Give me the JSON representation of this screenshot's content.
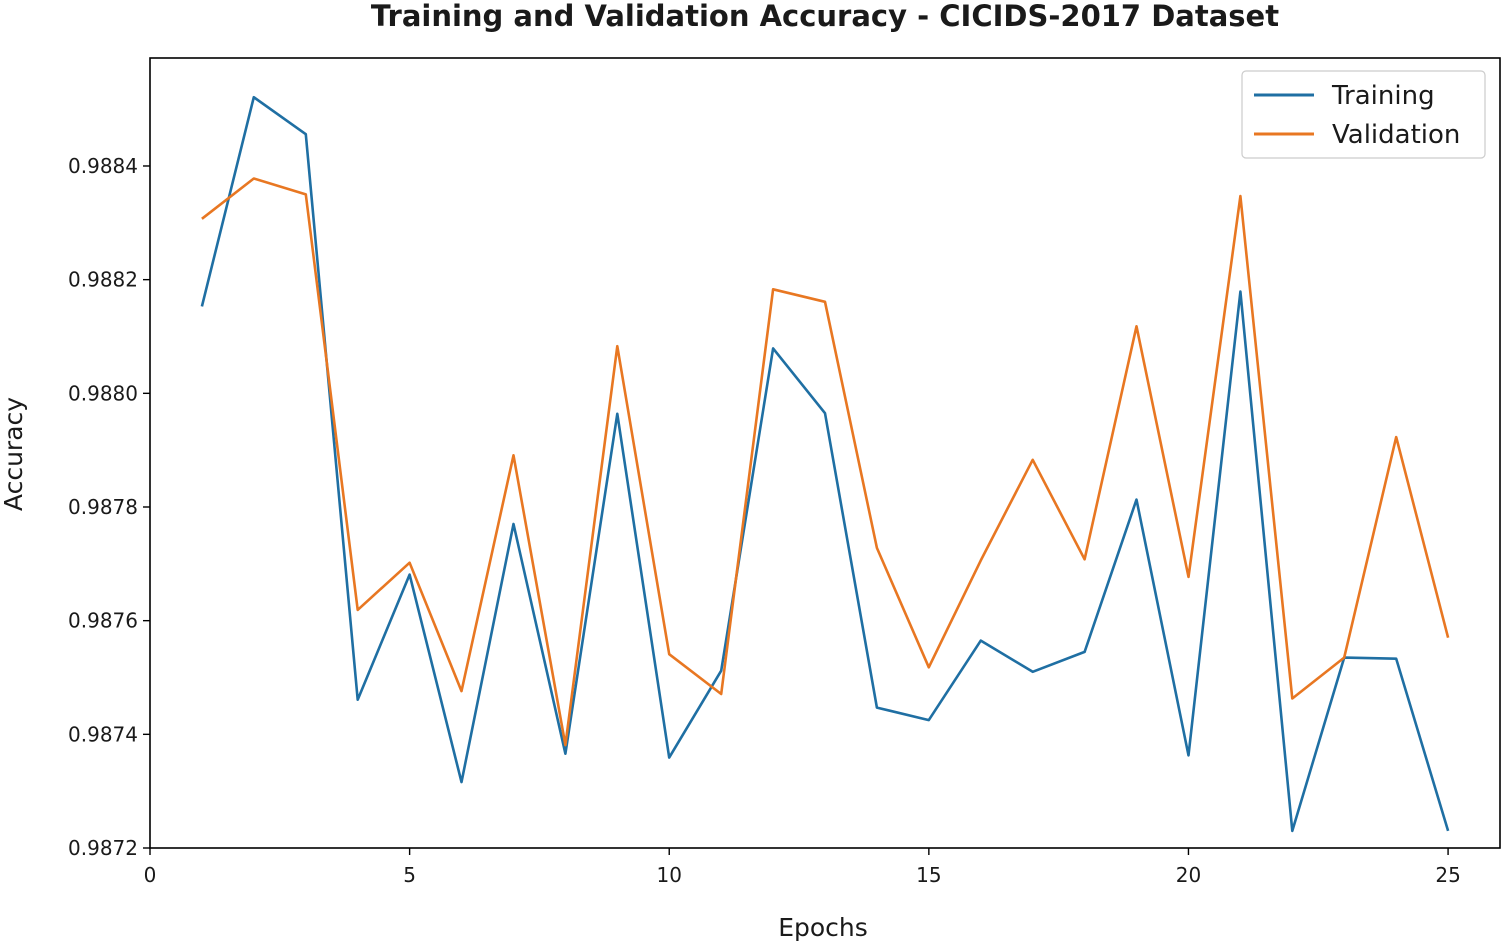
{
  "chart_data": {
    "type": "line",
    "title": "Training and Validation Accuracy - CICIDS-2017 Dataset",
    "xlabel": "Epochs",
    "ylabel": "Accuracy",
    "xlim": [
      0,
      26
    ],
    "ylim": [
      0.9872,
      0.98859
    ],
    "xticks": [
      0,
      5,
      10,
      15,
      20,
      25
    ],
    "yticks": [
      0.9872,
      0.9874,
      0.9876,
      0.9878,
      0.988,
      0.9882,
      0.9884
    ],
    "ytick_labels": [
      "0.9872",
      "0.9874",
      "0.9876",
      "0.9878",
      "0.9880",
      "0.9882",
      "0.9884"
    ],
    "grid": false,
    "legend": "top-right",
    "x": [
      1,
      2,
      3,
      4,
      5,
      6,
      7,
      8,
      9,
      10,
      11,
      12,
      13,
      14,
      15,
      16,
      17,
      18,
      19,
      20,
      21,
      22,
      23,
      24,
      25
    ],
    "series": [
      {
        "name": "Training",
        "color": "#1f6fa3",
        "values": [
          0.988153,
          0.988521,
          0.988456,
          0.987461,
          0.987681,
          0.987316,
          0.98777,
          0.987366,
          0.987964,
          0.987359,
          0.987512,
          0.988079,
          0.987965,
          0.987447,
          0.987425,
          0.987565,
          0.98751,
          0.987545,
          0.987813,
          0.987363,
          0.988179,
          0.98723,
          0.987535,
          0.987533,
          0.98723
        ]
      },
      {
        "name": "Validation",
        "color": "#e87722",
        "values": [
          0.988307,
          0.988378,
          0.98835,
          0.987619,
          0.987702,
          0.987476,
          0.987891,
          0.987381,
          0.988083,
          0.987541,
          0.987471,
          0.988183,
          0.988161,
          0.987728,
          0.987518,
          0.987706,
          0.987883,
          0.987708,
          0.988118,
          0.987677,
          0.988347,
          0.987463,
          0.987535,
          0.987923,
          0.98757
        ]
      }
    ]
  }
}
